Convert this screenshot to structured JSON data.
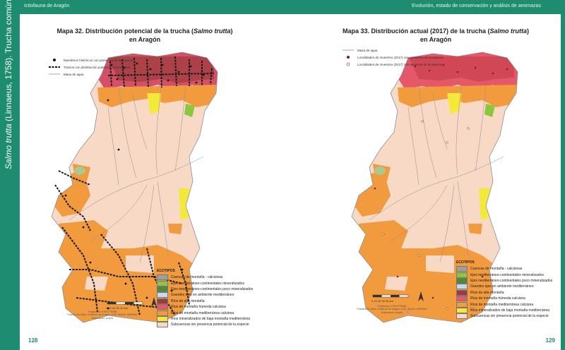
{
  "header": {
    "left_text": "Ictiofauna de Aragón",
    "right_text": "Evolución, estado de conservación y análisis de amenazas"
  },
  "sidebar": {
    "species": "Salmo trutta",
    "rest": " (Linnaeus, 1758). Trucha común"
  },
  "pages": {
    "left": "128",
    "right": "129"
  },
  "map_left": {
    "title_line1_prefix": "Mapa 32. Distribución potencial de la trucha (",
    "title_italic": "Salmo trutta",
    "title_line1_suffix": ")",
    "title_line2": "en Aragón",
    "legend": [
      {
        "label": "Muestreos históricos con presencia de la especie",
        "symbol": "dot"
      },
      {
        "label": "Tramos con distribución potencial de la especie",
        "symbol": "thick-line"
      },
      {
        "label": "Masa de agua",
        "symbol": "thin-line"
      }
    ]
  },
  "map_right": {
    "title_line1_prefix": "Mapa 33. Distribución actual (2017) de la trucha (",
    "title_italic": "Salmo trutta",
    "title_line1_suffix": ")",
    "title_line2": "en Aragón",
    "legend": [
      {
        "label": "Masa de agua",
        "symbol": "thin-line"
      },
      {
        "label": "Localidades de muestreo (2017) con presencia de la especie",
        "symbol": "dot-red"
      },
      {
        "label": "Localidades de muestreo (2017) con ausencia de la especie",
        "symbol": "dot-light"
      }
    ]
  },
  "ecotypes": {
    "header": "ECOTIPOS",
    "items": [
      {
        "label": "Cuencas de montaña - calcáreas",
        "color": "#9e9e9e"
      },
      {
        "label": "Ejes mediterráneo-continentales mineralizados",
        "color": "#8dc63f"
      },
      {
        "label": "Ejes mediterráneo-continentales poco mineralizados",
        "color": "#4f8a2b"
      },
      {
        "label": "Grandes ejes en ambiente mediterráneo",
        "color": "#c9d8ee"
      },
      {
        "label": "Ríos de alta montaña",
        "color": "#9a3c3c"
      },
      {
        "label": "Ríos de montaña húmeda calcárea",
        "color": "#e5586a"
      },
      {
        "label": "Ríos de montaña mediterránea calcárea",
        "color": "#f19a3e"
      },
      {
        "label": "Ríos mineralizados de baja montaña mediterránea",
        "color": "#f4e83a"
      },
      {
        "label": "Subcuencas sin presencia potencial de la especie",
        "color": "#f8d9c5"
      }
    ]
  },
  "credits": {
    "line1": "Proyección: UTM ETRS89",
    "line2": "Fuentes de datos: Gobierno de Aragón, CHE, INAGA, MAPAMA",
    "line3": "Elaboración: propia"
  },
  "scale": {
    "label": "0 10 20 30 40 km"
  },
  "colors": {
    "accent": "#1e8c6e",
    "background_land": "#f8d9c5",
    "river": "#8a8f96",
    "track": "#1a1a1a"
  }
}
